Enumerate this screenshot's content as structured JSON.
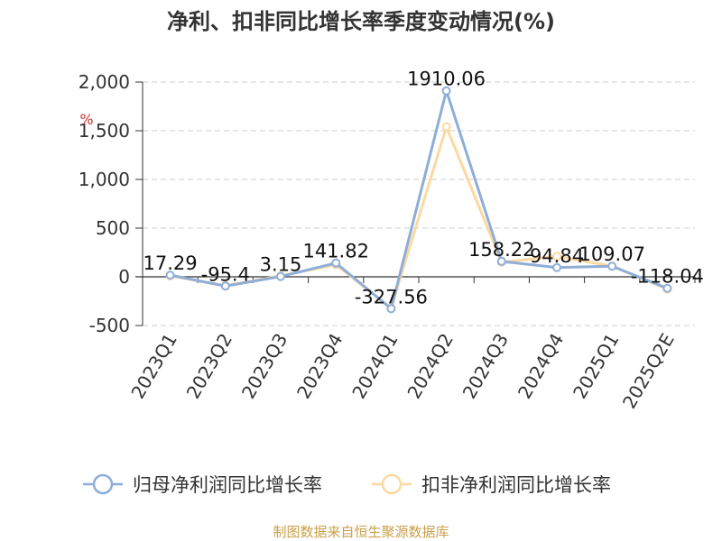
{
  "chart_data": {
    "type": "line",
    "title": "净利、扣非同比增长率季度变动情况(%)",
    "ylabel": "%",
    "xlabel": "",
    "categories": [
      "2023Q1",
      "2023Q2",
      "2023Q3",
      "2023Q4",
      "2024Q1",
      "2024Q2",
      "2024Q3",
      "2024Q4",
      "2025Q1",
      "2025Q2E"
    ],
    "ylim": [
      -500,
      2000
    ],
    "yticks": [
      2000,
      1500,
      1000,
      500,
      0,
      -500
    ],
    "ytick_labels": [
      "2,000",
      "1,500",
      "1,000",
      "500",
      "0",
      "-500"
    ],
    "grid": true,
    "legend_position": "bottom",
    "series": [
      {
        "name": "归母净利润同比增长率",
        "color": "#8eaed8",
        "values": [
          17.29,
          -95.4,
          3.15,
          141.82,
          -327.56,
          1910.06,
          158.22,
          94.84,
          109.07,
          -118.04
        ],
        "labels": [
          "17.29",
          "-95.4",
          "3.15",
          "141.82",
          "-327.56",
          "1910.06",
          "158.22",
          "94.84",
          "109.07",
          "-118.04"
        ]
      },
      {
        "name": "扣非净利润同比增长率",
        "color": "#fbd9a0",
        "values": [
          10,
          -90,
          10,
          125,
          -320,
          1540,
          150,
          210,
          110,
          -125
        ]
      }
    ],
    "source": "制图数据来自恒生聚源数据库"
  },
  "colors": {
    "title": "#333333",
    "axis": "#333333",
    "grid": "#cccccc",
    "ylabel": "#cc3333",
    "source": "#c8a04a"
  }
}
